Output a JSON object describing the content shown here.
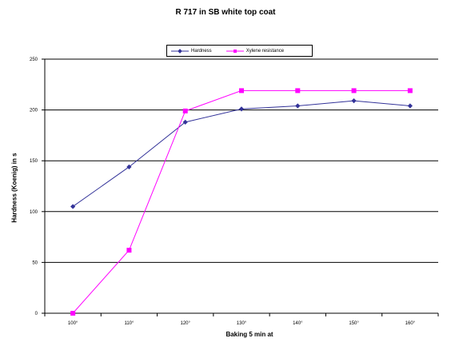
{
  "chart_data": {
    "type": "line",
    "title": "R 717 in SB white top coat",
    "xlabel": "Baking 5 min at",
    "ylabel": "Hardness (Koenig) in s",
    "categories": [
      "100°",
      "110°",
      "120°",
      "130°",
      "140°",
      "150°",
      "160°"
    ],
    "ylim": [
      0,
      250
    ],
    "yticks": [
      0,
      50,
      100,
      150,
      200,
      250
    ],
    "grid": "horizontal",
    "legend_position": "top",
    "series": [
      {
        "name": "Hardness",
        "color": "#333399",
        "marker": "diamond",
        "values": [
          105,
          144,
          188,
          201,
          204,
          209,
          204
        ]
      },
      {
        "name": "Xylene resistance",
        "color": "#ff00ff",
        "marker": "square",
        "values": [
          0,
          62,
          199,
          219,
          219,
          219,
          219
        ]
      }
    ]
  }
}
